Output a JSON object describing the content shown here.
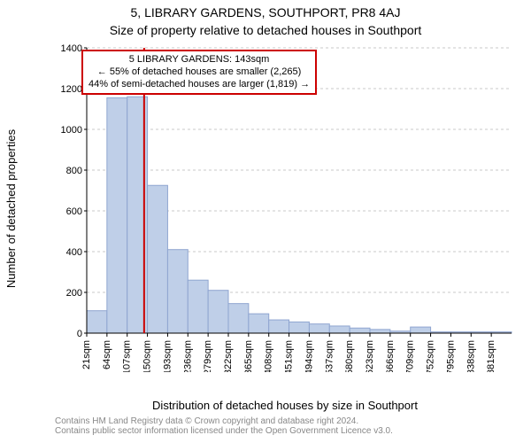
{
  "title_line1": "5, LIBRARY GARDENS, SOUTHPORT, PR8 4AJ",
  "title_line2": "Size of property relative to detached houses in Southport",
  "title_fontsize": 14,
  "ylabel": "Number of detached properties",
  "xlabel": "Distribution of detached houses by size in Southport",
  "label_fontsize": 13,
  "footer_line1": "Contains HM Land Registry data © Crown copyright and database right 2024.",
  "footer_line2": "Contains public sector information licensed under the Open Government Licence v3.0.",
  "footer_fontsize": 10,
  "footer_color": "#888888",
  "annotation": {
    "line1": "5 LIBRARY GARDENS: 143sqm",
    "line2": "← 55% of detached houses are smaller (2,265)",
    "line3": "44% of semi-detached houses are larger (1,819) →",
    "border_color": "#cc0000"
  },
  "chart": {
    "type": "histogram",
    "background_color": "#ffffff",
    "bar_fill": "#bfcfe8",
    "bar_stroke": "#8fa5d0",
    "bar_stroke_width": 1,
    "axis_color": "#000000",
    "grid_color": "#c8c8c8",
    "grid_dash": "3 3",
    "tick_fontsize": 11,
    "marker_line_color": "#cc0000",
    "marker_line_width": 2,
    "marker_x": 143,
    "ylim": [
      0,
      1400
    ],
    "ytick_step": 200,
    "yticks": [
      0,
      200,
      400,
      600,
      800,
      1000,
      1200,
      1400
    ],
    "xticks": [
      21,
      64,
      107,
      150,
      193,
      236,
      279,
      322,
      365,
      408,
      451,
      494,
      537,
      580,
      623,
      666,
      709,
      752,
      795,
      838,
      881
    ],
    "xtick_suffix": "sqm",
    "bar_width_x": 43,
    "bars": [
      {
        "x_start": 21,
        "value": 110
      },
      {
        "x_start": 64,
        "value": 1155
      },
      {
        "x_start": 107,
        "value": 1160
      },
      {
        "x_start": 150,
        "value": 725
      },
      {
        "x_start": 193,
        "value": 410
      },
      {
        "x_start": 236,
        "value": 260
      },
      {
        "x_start": 279,
        "value": 210
      },
      {
        "x_start": 322,
        "value": 145
      },
      {
        "x_start": 365,
        "value": 95
      },
      {
        "x_start": 408,
        "value": 65
      },
      {
        "x_start": 451,
        "value": 55
      },
      {
        "x_start": 494,
        "value": 45
      },
      {
        "x_start": 537,
        "value": 35
      },
      {
        "x_start": 580,
        "value": 25
      },
      {
        "x_start": 623,
        "value": 18
      },
      {
        "x_start": 666,
        "value": 10
      },
      {
        "x_start": 709,
        "value": 30
      },
      {
        "x_start": 752,
        "value": 6
      },
      {
        "x_start": 795,
        "value": 6
      },
      {
        "x_start": 838,
        "value": 6
      },
      {
        "x_start": 881,
        "value": 6
      }
    ]
  }
}
